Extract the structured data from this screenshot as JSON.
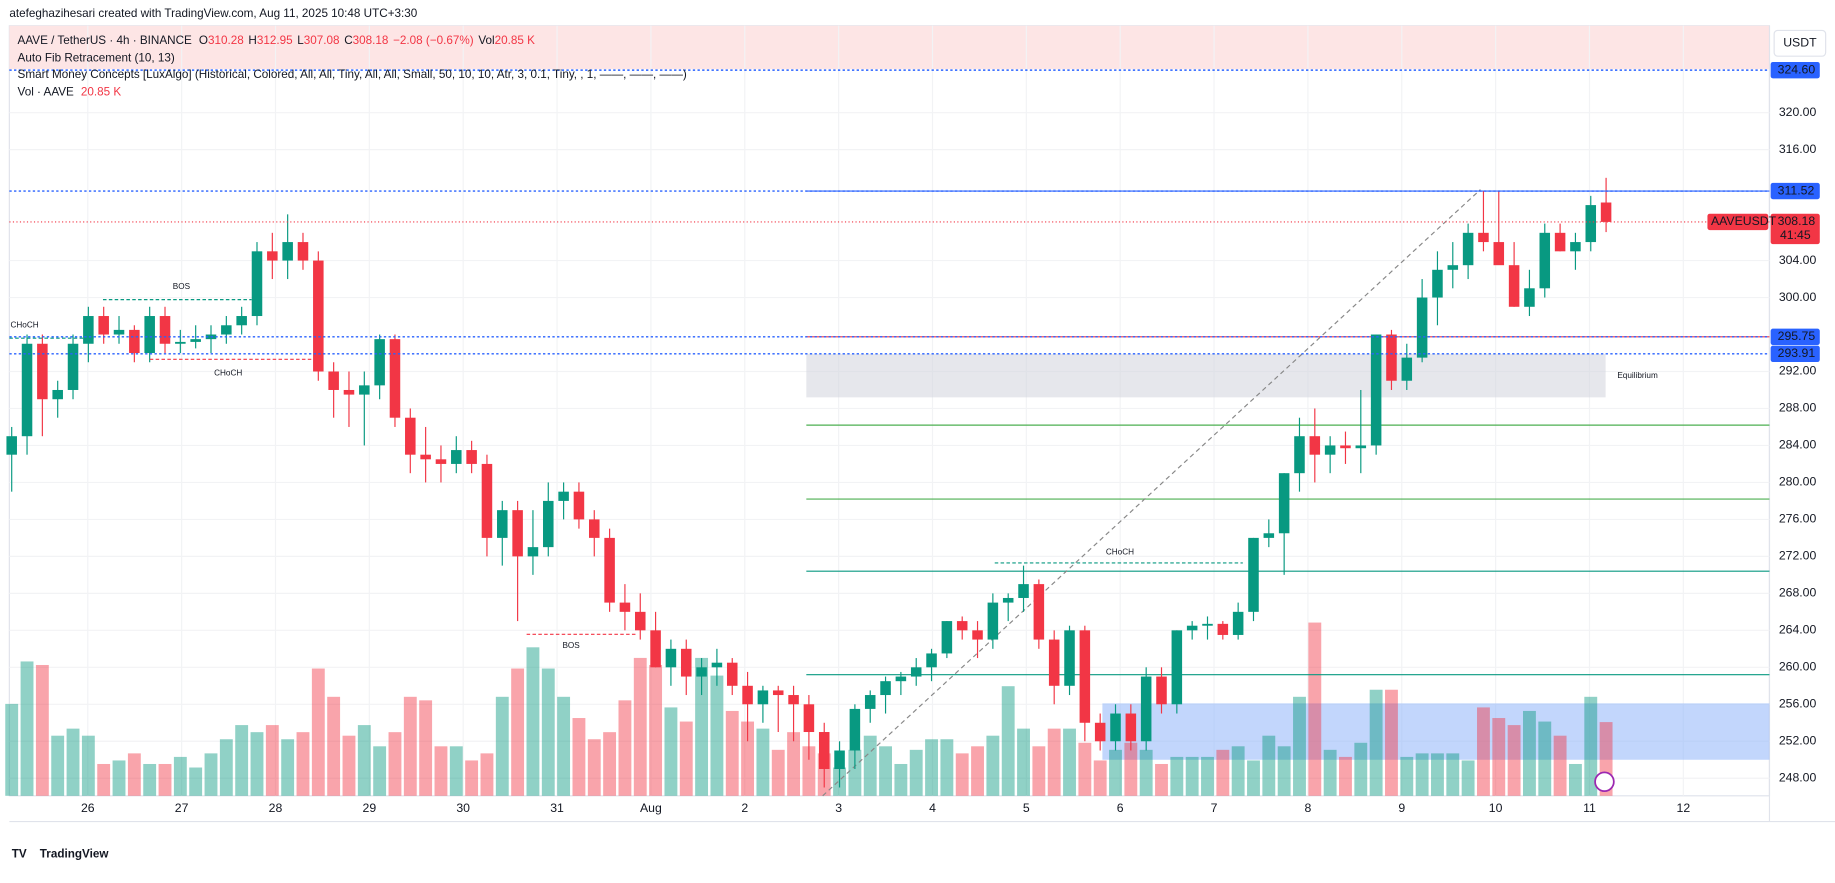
{
  "credit": "atefeghazihesari created with TradingView.com, Aug 11, 2025 10:48 UTC+3:30",
  "legend": {
    "symbol": "AAVE / TetherUS · 4h · BINANCE",
    "ohlc": [
      {
        "key": "O",
        "value": "310.28"
      },
      {
        "key": "H",
        "value": "312.95"
      },
      {
        "key": "L",
        "value": "307.08"
      },
      {
        "key": "C",
        "value": "308.18"
      }
    ],
    "change": "−2.08 (−0.67%)",
    "vol_key": "Vol",
    "vol": "20.85 K"
  },
  "indicators": [
    "Auto Fib Retracement (10, 13)",
    "Smart Money Concepts [LuxAlgo] (Historical, Colored, All, All, Tiny, All, All, Small, 50, 10, 10, Atr, 3, 0.1, Tiny, , 1, ——, ——, ——)"
  ],
  "volume_legend": {
    "name": "Vol · AAVE",
    "value": "20.85 K"
  },
  "logo": "TradingView",
  "chart_data": {
    "type": "candlestick",
    "currency": "USDT",
    "up_color": "#089981",
    "down_color": "#f23645",
    "x_labels": [
      "26",
      "27",
      "28",
      "29",
      "30",
      "31",
      "Aug",
      "2",
      "3",
      "4",
      "5",
      "6",
      "7",
      "8",
      "9",
      "10",
      "11",
      "12"
    ],
    "ylim": [
      246.1,
      329.4
    ],
    "yticks": [
      {
        "value": 248,
        "label": "248.00"
      },
      {
        "value": 252,
        "label": "252.00"
      },
      {
        "value": 256,
        "label": "256.00"
      },
      {
        "value": 260,
        "label": "260.00"
      },
      {
        "value": 264,
        "label": "264.00"
      },
      {
        "value": 268,
        "label": "268.00"
      },
      {
        "value": 272,
        "label": "272.00"
      },
      {
        "value": 276,
        "label": "276.00"
      },
      {
        "value": 280,
        "label": "280.00"
      },
      {
        "value": 284,
        "label": "284.00"
      },
      {
        "value": 288,
        "label": "288.00"
      },
      {
        "value": 292,
        "label": "292.00"
      },
      {
        "value": 300,
        "label": "300.00"
      },
      {
        "value": 304,
        "label": "304.00"
      },
      {
        "value": 316,
        "label": "316.00"
      },
      {
        "value": 320,
        "label": "320.00"
      }
    ],
    "candles": [
      [
        283,
        286,
        279,
        285
      ],
      [
        285,
        296,
        283,
        295
      ],
      [
        295,
        296,
        285,
        289
      ],
      [
        289,
        291,
        287,
        290
      ],
      [
        290,
        296,
        289,
        295
      ],
      [
        295,
        299,
        293,
        298
      ],
      [
        298,
        299,
        295,
        296
      ],
      [
        296,
        298,
        295,
        296.5
      ],
      [
        296.5,
        297,
        293,
        294
      ],
      [
        294,
        299,
        293,
        298
      ],
      [
        298,
        299,
        294,
        295
      ],
      [
        295,
        296.5,
        294,
        295.2
      ],
      [
        295.2,
        297,
        294.5,
        295.5
      ],
      [
        295.5,
        297,
        294,
        296
      ],
      [
        296,
        298,
        295,
        297
      ],
      [
        297,
        299,
        296,
        298
      ],
      [
        298,
        306,
        297,
        305
      ],
      [
        305,
        307,
        302,
        304
      ],
      [
        304,
        309,
        302,
        306
      ],
      [
        306,
        307,
        303,
        304
      ],
      [
        304,
        305,
        291,
        292
      ],
      [
        292,
        293,
        287,
        290
      ],
      [
        290,
        292,
        286,
        289.5
      ],
      [
        289.5,
        292,
        284,
        290.5
      ],
      [
        290.5,
        296,
        289,
        295.5
      ],
      [
        295.5,
        296,
        286,
        287
      ],
      [
        287,
        288,
        281,
        283
      ],
      [
        283,
        286,
        280,
        282.5
      ],
      [
        282.5,
        284,
        280,
        282
      ],
      [
        282,
        285,
        281,
        283.5
      ],
      [
        283.5,
        284.5,
        281,
        282
      ],
      [
        282,
        283,
        272,
        274
      ],
      [
        274,
        278,
        271,
        277
      ],
      [
        277,
        278,
        265,
        272
      ],
      [
        272,
        277,
        270,
        273
      ],
      [
        273,
        280,
        272,
        278
      ],
      [
        278,
        280,
        276,
        279
      ],
      [
        279,
        280,
        275,
        276
      ],
      [
        276,
        277,
        272,
        274
      ],
      [
        274,
        275,
        266,
        267
      ],
      [
        267,
        269,
        264,
        266
      ],
      [
        266,
        268,
        263,
        264
      ],
      [
        264,
        266,
        260,
        260
      ],
      [
        260,
        263,
        258,
        262
      ],
      [
        262,
        263,
        257,
        259
      ],
      [
        259,
        261,
        257,
        260
      ],
      [
        260,
        262,
        258,
        260.5
      ],
      [
        260.5,
        261,
        257,
        258
      ],
      [
        258,
        259.5,
        252,
        256
      ],
      [
        256,
        258,
        254,
        257.5
      ],
      [
        257.5,
        258,
        253,
        257
      ],
      [
        257,
        258,
        252,
        256
      ],
      [
        256,
        257,
        250,
        253
      ],
      [
        253,
        254,
        247,
        249
      ],
      [
        249,
        252,
        247,
        251
      ],
      [
        251,
        256,
        249,
        255.5
      ],
      [
        255.5,
        257.5,
        254,
        257
      ],
      [
        257,
        259,
        255,
        258.5
      ],
      [
        258.5,
        259.5,
        257,
        259
      ],
      [
        259,
        261,
        258,
        260
      ],
      [
        260,
        262,
        258.5,
        261.5
      ],
      [
        261.5,
        265,
        261,
        265
      ],
      [
        265,
        265.5,
        263,
        264
      ],
      [
        264,
        265,
        261,
        263
      ],
      [
        263,
        268,
        262,
        267
      ],
      [
        267,
        268,
        265,
        267.5
      ],
      [
        267.5,
        271,
        266,
        269
      ],
      [
        269,
        269.5,
        262,
        263
      ],
      [
        263,
        264,
        256,
        258
      ],
      [
        258,
        264.5,
        257,
        264
      ],
      [
        264,
        264.5,
        252,
        254
      ],
      [
        254,
        255,
        251,
        252
      ],
      [
        252,
        256,
        251,
        255
      ],
      [
        255,
        256,
        251,
        252
      ],
      [
        252,
        260,
        251,
        259
      ],
      [
        259,
        260,
        255,
        256
      ],
      [
        256,
        264,
        255,
        264
      ],
      [
        264,
        265,
        263,
        264.5
      ],
      [
        264.5,
        265.5,
        263,
        264.7
      ],
      [
        264.7,
        265,
        263,
        263.5
      ],
      [
        263.5,
        267,
        263,
        266
      ],
      [
        266,
        274,
        265,
        274
      ],
      [
        274,
        276,
        273,
        274.5
      ],
      [
        274.5,
        281,
        270,
        281
      ],
      [
        281,
        287,
        279,
        285
      ],
      [
        285,
        288,
        280,
        283
      ],
      [
        283,
        285,
        281,
        284
      ],
      [
        284,
        285.5,
        282,
        283.7
      ],
      [
        283.7,
        290,
        281,
        284
      ],
      [
        284,
        296,
        283,
        296
      ],
      [
        296,
        296.5,
        290,
        291
      ],
      [
        291,
        295,
        290,
        293.5
      ],
      [
        293.5,
        302,
        293,
        300
      ],
      [
        300,
        305,
        297,
        303
      ],
      [
        303,
        306,
        301,
        303.5
      ],
      [
        303.5,
        308,
        302,
        307
      ],
      [
        307,
        311.5,
        305,
        306
      ],
      [
        306,
        311.5,
        304,
        303.5
      ],
      [
        303.5,
        306,
        299,
        299
      ],
      [
        299,
        303,
        298,
        301
      ],
      [
        301,
        308,
        300,
        307
      ],
      [
        307,
        308,
        305,
        305
      ],
      [
        305,
        307,
        303,
        306
      ],
      [
        306,
        311,
        305,
        310
      ],
      [
        310.28,
        312.95,
        307.08,
        308.18
      ]
    ],
    "volumes": [
      26,
      38,
      37,
      17,
      19,
      17,
      9,
      10,
      12,
      9,
      9,
      11,
      8,
      12,
      16,
      20,
      18,
      20,
      16,
      18,
      36,
      28,
      17,
      20,
      14,
      18,
      28,
      27,
      14,
      14,
      10,
      12,
      28,
      36,
      42,
      36,
      28,
      22,
      16,
      18,
      27,
      39,
      37,
      25,
      21,
      39,
      34,
      24,
      21,
      19,
      13,
      18,
      14,
      12,
      8,
      13,
      17,
      14,
      9,
      13,
      16,
      16,
      12,
      14,
      17,
      31,
      19,
      14,
      19,
      19,
      15,
      10,
      13,
      15,
      13,
      9,
      11,
      11,
      11,
      13,
      14,
      10,
      17,
      14,
      28,
      49,
      13,
      11,
      15,
      30,
      30,
      11,
      12,
      12,
      12,
      10,
      25,
      22,
      20,
      24,
      21,
      17,
      9,
      28,
      20.85
    ],
    "levels": [
      {
        "value": 324.6,
        "label": "324.60"
      },
      {
        "value": 311.52,
        "label": "311.52"
      },
      {
        "value": 295.75,
        "label": "295.75"
      },
      {
        "value": 293.91,
        "label": "293.91"
      }
    ],
    "fib_levels": [
      {
        "value": 311.52,
        "color": "#2962ff"
      },
      {
        "value": 295.75,
        "color": "#f23645"
      },
      {
        "value": 286.2,
        "color": "#4caf50"
      },
      {
        "value": 278.2,
        "color": "#4caf50"
      },
      {
        "value": 270.4,
        "color": "#089981"
      },
      {
        "value": 259.2,
        "color": "#089981"
      }
    ],
    "zones": [
      {
        "top": 293.9,
        "bottom": 289.2,
        "color": "#d1d4dc",
        "label": "Equilibrium"
      },
      {
        "top": 256.1,
        "bottom": 250.0,
        "color": "#90b4fa"
      }
    ],
    "annotations": [
      "BOS",
      "CHoCH",
      "CHoCH",
      "BOS",
      "CHoCH"
    ],
    "current_price": {
      "value": 308.18,
      "symbol": "AAVEUSDT",
      "countdown": "41:45"
    }
  }
}
